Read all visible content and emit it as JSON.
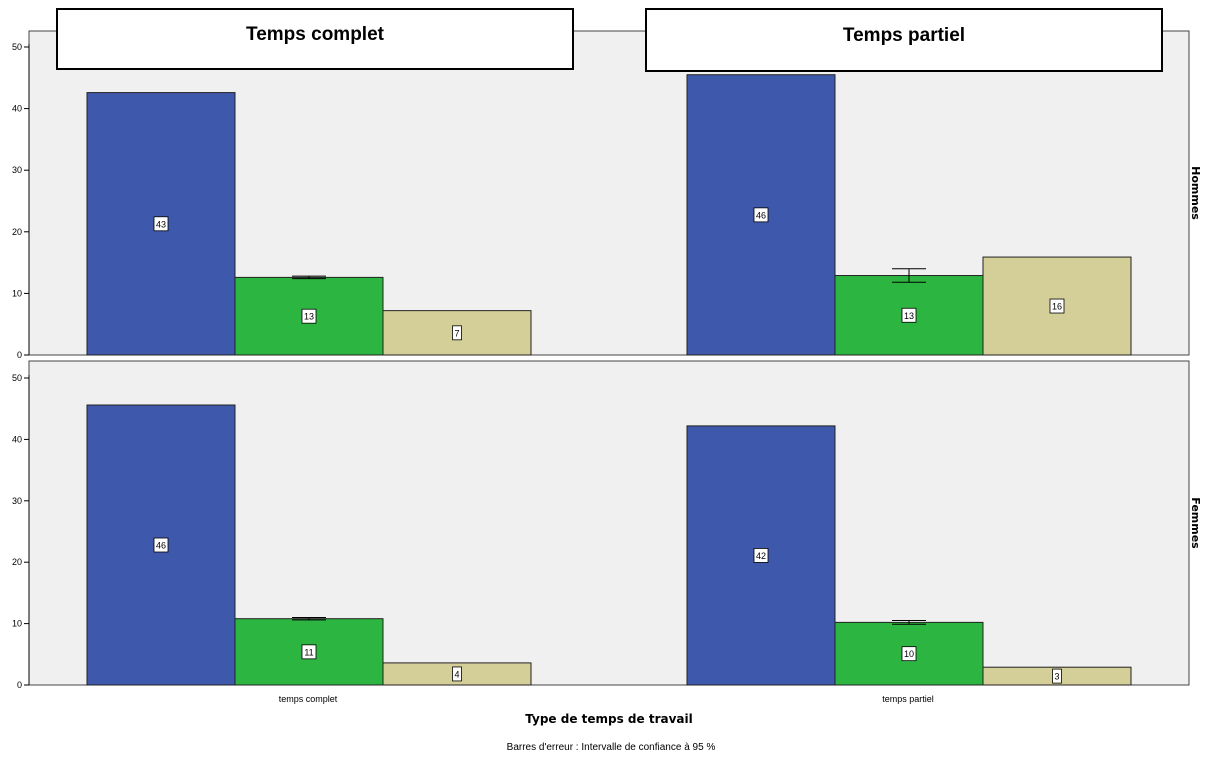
{
  "colors": {
    "background": "#ffffff",
    "panel_fill": "#f0f0f0",
    "bar_blue": "#3e58ac",
    "bar_green": "#2db541",
    "bar_tan": "#d4cf98"
  },
  "chart_data": {
    "type": "bar",
    "xlabel": "Type de temps de travail",
    "footnote": "Barres d'erreur : Intervalle de confiance à 95 %",
    "column_titles": [
      "Temps complet",
      "Temps partiel"
    ],
    "row_labels": [
      "Hommes",
      "Femmes"
    ],
    "categories": [
      "temps complet",
      "temps partiel"
    ],
    "ylim": [
      0,
      50
    ],
    "yticks": [
      0,
      10,
      20,
      30,
      40,
      50
    ],
    "grid": false,
    "legend": "none",
    "panels": [
      {
        "row": "Hommes",
        "category": "temps complet",
        "values": [
          42.6,
          12.6,
          7.2
        ],
        "labels": [
          "43",
          "13",
          "7"
        ],
        "error_bars": [
          null,
          [
            12.4,
            12.8
          ],
          null
        ]
      },
      {
        "row": "Hommes",
        "category": "temps partiel",
        "values": [
          45.5,
          12.9,
          15.9
        ],
        "labels": [
          "46",
          "13",
          "16"
        ],
        "error_bars": [
          null,
          [
            11.8,
            14.0
          ],
          null
        ]
      },
      {
        "row": "Femmes",
        "category": "temps complet",
        "values": [
          45.6,
          10.8,
          3.6
        ],
        "labels": [
          "46",
          "11",
          "4"
        ],
        "error_bars": [
          null,
          [
            10.6,
            11.0
          ],
          null
        ]
      },
      {
        "row": "Femmes",
        "category": "temps partiel",
        "values": [
          42.2,
          10.2,
          2.9
        ],
        "labels": [
          "42",
          "10",
          "3"
        ],
        "error_bars": [
          null,
          [
            9.9,
            10.5
          ],
          null
        ]
      }
    ]
  }
}
